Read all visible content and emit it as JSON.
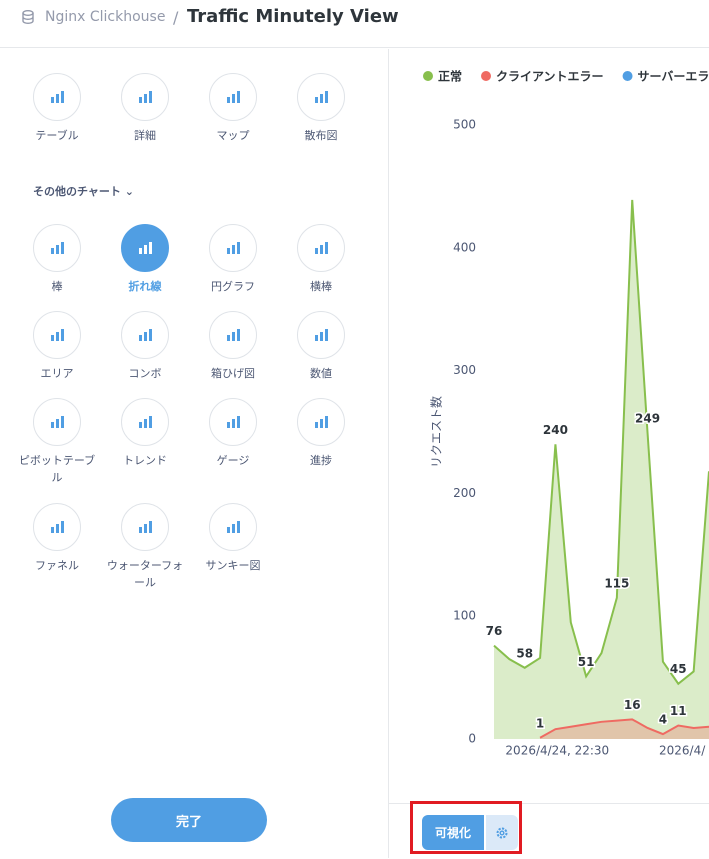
{
  "header": {
    "database": "Nginx Clickhouse",
    "separator": "/",
    "title": "Traffic Minutely View"
  },
  "chart_picker": {
    "primary": [
      "テーブル",
      "詳細",
      "マップ",
      "散布図"
    ],
    "more_label": "その他のチャート",
    "others": [
      "棒",
      "折れ線",
      "円グラフ",
      "横棒",
      "エリア",
      "コンボ",
      "箱ひげ図",
      "数値",
      "ピボットテーブル",
      "トレンド",
      "ゲージ",
      "進捗",
      "ファネル",
      "ウォーターフォール",
      "サンキー図"
    ],
    "selected": "折れ線"
  },
  "done_button": "完了",
  "visualize_button": "可視化",
  "chart_data": {
    "type": "area",
    "y_label": "リクエスト数",
    "categories": [
      null,
      null,
      null,
      null,
      "2026/4/24, 22:30",
      null,
      null,
      null,
      null,
      null,
      null,
      null,
      null,
      null,
      "2026/4/"
    ],
    "series": [
      {
        "name": "正常",
        "color": "#88bf4d",
        "values": [
          76,
          65,
          58,
          66,
          240,
          95,
          51,
          70,
          115,
          439,
          249,
          63,
          45,
          55,
          218
        ],
        "value_labels": [
          "76",
          null,
          "58",
          null,
          "240",
          null,
          "51",
          null,
          "115",
          null,
          "249",
          null,
          "45",
          null,
          null
        ]
      },
      {
        "name": "クライアントエラー",
        "color": "#ef6a62",
        "values": [
          null,
          null,
          null,
          1,
          8,
          10,
          12,
          14,
          15,
          16,
          9,
          4,
          11,
          9,
          10
        ],
        "value_labels": [
          null,
          null,
          null,
          "1",
          null,
          null,
          null,
          null,
          null,
          "16",
          null,
          "4",
          "11",
          null,
          null
        ]
      },
      {
        "name": "サーバーエラ",
        "color": "#509ee3",
        "values": [
          null,
          null,
          null,
          null,
          null,
          null,
          null,
          null,
          null,
          null,
          null,
          null,
          null,
          null,
          null
        ]
      }
    ],
    "ylim": [
      0,
      500
    ],
    "yticks": [
      0,
      100,
      200,
      300,
      400,
      500
    ],
    "grid": false
  }
}
